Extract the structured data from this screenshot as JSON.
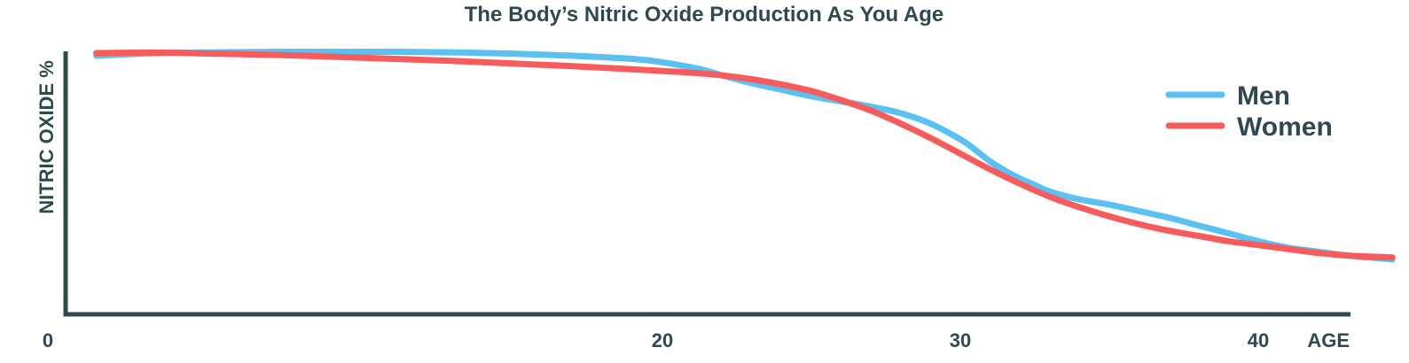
{
  "chart_data": {
    "type": "line",
    "title": "The Body’s Nitric Oxide Production As You Age",
    "ylabel": "NITRIC OXIDE %",
    "xlabel": "AGE",
    "xlim": [
      0,
      45
    ],
    "ylim": [
      0,
      100
    ],
    "x_ticks": [
      {
        "value": 0,
        "label": "0"
      },
      {
        "value": 20,
        "label": "20"
      },
      {
        "value": 30,
        "label": "30"
      },
      {
        "value": 40,
        "label": "40"
      },
      {
        "value": 44.8,
        "label": "AGE"
      }
    ],
    "grid": false,
    "legend_position": "top-right",
    "series": [
      {
        "name": "Men",
        "color": "#5bc0f2",
        "x": [
          1,
          3,
          5,
          7,
          9,
          11,
          13,
          15,
          17,
          19,
          20,
          21,
          21.5,
          22,
          23,
          24,
          25,
          26,
          27,
          28,
          29,
          30,
          30.5,
          31,
          31.5,
          32,
          32.5,
          33,
          34,
          35,
          36,
          37,
          38,
          39,
          40,
          41,
          42,
          43,
          44,
          44.5
        ],
        "y": [
          99,
          100,
          100.3,
          100.5,
          100.5,
          100.5,
          100.3,
          99.8,
          99,
          97.8,
          96.5,
          94.5,
          93.2,
          91.5,
          88.5,
          86,
          83.5,
          81.5,
          79.5,
          77,
          73,
          67,
          63,
          58.5,
          55,
          52,
          49.5,
          47,
          44,
          42,
          39.5,
          37,
          34,
          31,
          28,
          25.5,
          24,
          22.5,
          21.5,
          21
        ]
      },
      {
        "name": "Women",
        "color": "#f75b5b",
        "x": [
          1,
          3,
          5,
          7,
          9,
          11,
          13,
          15,
          17,
          19,
          21,
          22,
          23,
          24,
          25,
          26,
          27,
          28,
          29,
          30,
          31,
          32,
          33,
          34,
          35,
          36,
          37,
          38,
          39,
          40,
          41,
          42,
          43,
          44,
          44.5
        ],
        "y": [
          100,
          100.2,
          99.8,
          99.3,
          98.6,
          97.8,
          97,
          96,
          95,
          93.8,
          92.5,
          91.5,
          90,
          88,
          85.5,
          82,
          78,
          73,
          67.5,
          61.5,
          55.5,
          50,
          45,
          41,
          37.5,
          34.5,
          32,
          30,
          28,
          26.5,
          25,
          23.5,
          22.5,
          22,
          21.8
        ]
      }
    ]
  }
}
